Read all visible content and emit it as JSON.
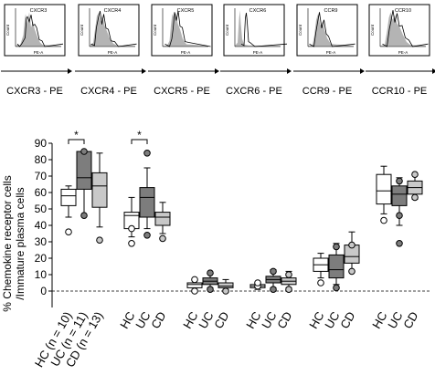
{
  "chart_data": [
    {
      "type": "histogram",
      "panels": [
        {
          "marker": "CXCR3",
          "xlabel": "CXCR3 - PE",
          "axis_label": "PE-A",
          "y_axis_label": "Count"
        },
        {
          "marker": "CXCR4",
          "xlabel": "CXCR4 - PE",
          "axis_label": "PE-A",
          "y_axis_label": "Count"
        },
        {
          "marker": "CXCR5",
          "xlabel": "CXCR5 - PE",
          "axis_label": "PE-A",
          "y_axis_label": "Count"
        },
        {
          "marker": "CXCR6",
          "xlabel": "CXCR6 - PE",
          "axis_label": "PE-A",
          "y_axis_label": "Count"
        },
        {
          "marker": "CCR9",
          "xlabel": "CCR9 - PE",
          "axis_label": "PE-A",
          "y_axis_label": "Count"
        },
        {
          "marker": "CCR10",
          "xlabel": "CCR10 - PE",
          "axis_label": "PE-A",
          "y_axis_label": "Count"
        }
      ]
    },
    {
      "type": "boxplot",
      "ylabel_lines": [
        "% Chemokine receptor cells",
        "/Immature plasma cells"
      ],
      "ylim": [
        -10,
        90
      ],
      "yticks": [
        0,
        10,
        20,
        30,
        40,
        50,
        60,
        70,
        80,
        90
      ],
      "reference_line_y": 0,
      "groups": [
        "HC (n = 10)",
        "UC (n = 11)",
        "CD (n = 13)"
      ],
      "group_fills": [
        "#ffffff",
        "#7d7d7d",
        "#c8c8c8"
      ],
      "receptors": [
        {
          "name": "CXCR3",
          "tick_labels": [
            "HC (n = 10)",
            "UC (n = 11)",
            "CD (n = 13)"
          ],
          "boxes": [
            {
              "q1": 52,
              "median": 58,
              "q3": 62,
              "whisker_low": 45,
              "whisker_high": 64,
              "outliers": [
                36
              ]
            },
            {
              "q1": 62,
              "median": 69,
              "q3": 85,
              "whisker_low": 46,
              "whisker_high": 85,
              "outliers": [
                46,
                85
              ]
            },
            {
              "q1": 51,
              "median": 64,
              "q3": 72,
              "whisker_low": 39,
              "whisker_high": 84,
              "outliers": [
                31
              ]
            }
          ],
          "significance": {
            "between": [
              0,
              1
            ],
            "label": "*"
          }
        },
        {
          "name": "CXCR4",
          "tick_labels": [
            "HC",
            "UC",
            "CD"
          ],
          "boxes": [
            {
              "q1": 38,
              "median": 46,
              "q3": 48,
              "whisker_low": 33,
              "whisker_high": 57,
              "outliers": [
                38,
                29
              ]
            },
            {
              "q1": 45,
              "median": 57,
              "q3": 63,
              "whisker_low": 38,
              "whisker_high": 75,
              "outliers": [
                34,
                84
              ]
            },
            {
              "q1": 40,
              "median": 45,
              "q3": 48,
              "whisker_low": 35,
              "whisker_high": 54,
              "outliers": [
                32
              ]
            }
          ],
          "significance": {
            "between": [
              0,
              1
            ],
            "label": "*"
          }
        },
        {
          "name": "CXCR5",
          "tick_labels": [
            "HC",
            "UC",
            "CD"
          ],
          "boxes": [
            {
              "q1": 2,
              "median": 4,
              "q3": 5,
              "whisker_low": 1,
              "whisker_high": 7,
              "outliers": [
                0,
                7
              ]
            },
            {
              "q1": 4,
              "median": 6,
              "q3": 8,
              "whisker_low": 2,
              "whisker_high": 11,
              "outliers": [
                1,
                11
              ]
            },
            {
              "q1": 2,
              "median": 3,
              "q3": 5,
              "whisker_low": 1,
              "whisker_high": 7,
              "outliers": [
                0
              ]
            }
          ]
        },
        {
          "name": "CXCR6",
          "tick_labels": [
            "HC",
            "UC",
            "CD"
          ],
          "boxes": [
            {
              "q1": 2,
              "median": 3,
              "q3": 4,
              "whisker_low": 1,
              "whisker_high": 5,
              "outliers": [
                3,
                5
              ]
            },
            {
              "q1": 5,
              "median": 7,
              "q3": 9,
              "whisker_low": 2,
              "whisker_high": 13,
              "outliers": [
                1,
                12
              ]
            },
            {
              "q1": 4,
              "median": 6,
              "q3": 8,
              "whisker_low": 2,
              "whisker_high": 12,
              "outliers": [
                1,
                10
              ]
            }
          ]
        },
        {
          "name": "CCR9",
          "tick_labels": [
            "HC",
            "UC",
            "CD"
          ],
          "boxes": [
            {
              "q1": 12,
              "median": 16,
              "q3": 20,
              "whisker_low": 8,
              "whisker_high": 23,
              "outliers": [
                5
              ]
            },
            {
              "q1": 8,
              "median": 13,
              "q3": 22,
              "whisker_low": 4,
              "whisker_high": 29,
              "outliers": [
                2,
                27
              ]
            },
            {
              "q1": 17,
              "median": 21,
              "q3": 28,
              "whisker_low": 12,
              "whisker_high": 36,
              "outliers": [
                12,
                28
              ]
            }
          ]
        },
        {
          "name": "CCR10",
          "tick_labels": [
            "HC",
            "UC",
            "CD"
          ],
          "boxes": [
            {
              "q1": 53,
              "median": 61,
              "q3": 71,
              "whisker_low": 47,
              "whisker_high": 76,
              "outliers": [
                43
              ]
            },
            {
              "q1": 52,
              "median": 59,
              "q3": 64,
              "whisker_low": 40,
              "whisker_high": 69,
              "outliers": [
                29,
                46,
                67
              ]
            },
            {
              "q1": 59,
              "median": 63,
              "q3": 67,
              "whisker_low": 56,
              "whisker_high": 71,
              "outliers": [
                57,
                71
              ]
            }
          ]
        }
      ]
    }
  ]
}
